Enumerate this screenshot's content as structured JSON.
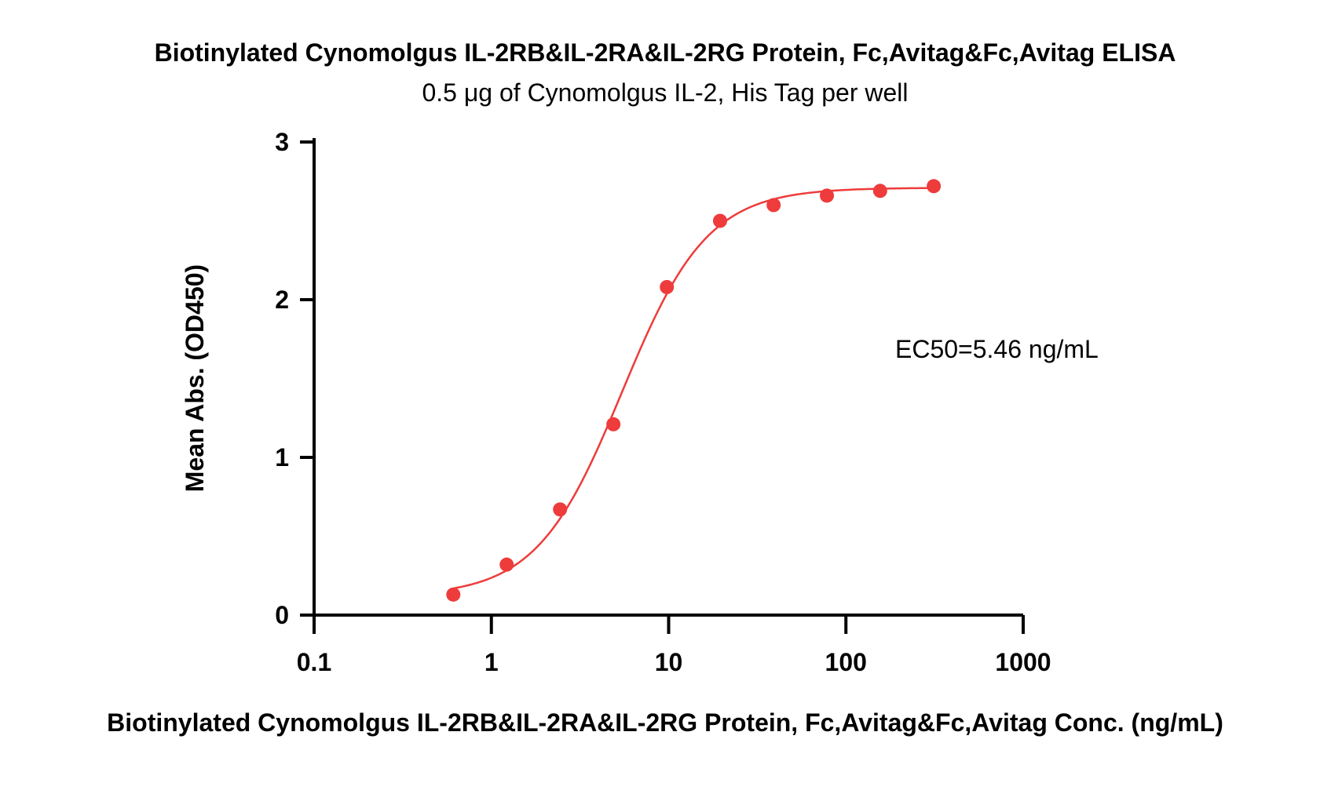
{
  "chart_data": {
    "type": "scatter",
    "title": "Biotinylated Cynomolgus IL-2RB&IL-2RA&IL-2RG Protein, Fc,Avitag&Fc,Avitag ELISA",
    "subtitle": "0.5 μg of Cynomolgus IL-2, His Tag per well",
    "xlabel": "Biotinylated Cynomolgus IL-2RB&IL-2RA&IL-2RG Protein, Fc,Avitag&Fc,Avitag Conc. (ng/mL)",
    "ylabel": "Mean Abs. (OD450)",
    "x_scale": "log",
    "xlim": [
      0.1,
      1000
    ],
    "ylim": [
      0,
      3
    ],
    "x_ticks": [
      0.1,
      1,
      10,
      100,
      1000
    ],
    "x_tick_labels": [
      "0.1",
      "1",
      "10",
      "100",
      "1000"
    ],
    "y_ticks": [
      0,
      1,
      2,
      3
    ],
    "y_tick_labels": [
      "0",
      "1",
      "2",
      "3"
    ],
    "annotation": "EC50=5.46 ng/mL",
    "color": "#ee3b3b",
    "series": [
      {
        "x": [
          0.61,
          1.22,
          2.44,
          4.88,
          9.77,
          19.5,
          39.1,
          78.1,
          156,
          313
        ],
        "y": [
          0.13,
          0.32,
          0.67,
          1.21,
          2.08,
          2.5,
          2.6,
          2.66,
          2.69,
          2.72
        ]
      }
    ],
    "fit": {
      "model": "4PL",
      "bottom": 0.12,
      "top": 2.71,
      "ec50": 5.46,
      "hill": 1.8,
      "x_range": [
        0.61,
        313
      ]
    }
  }
}
